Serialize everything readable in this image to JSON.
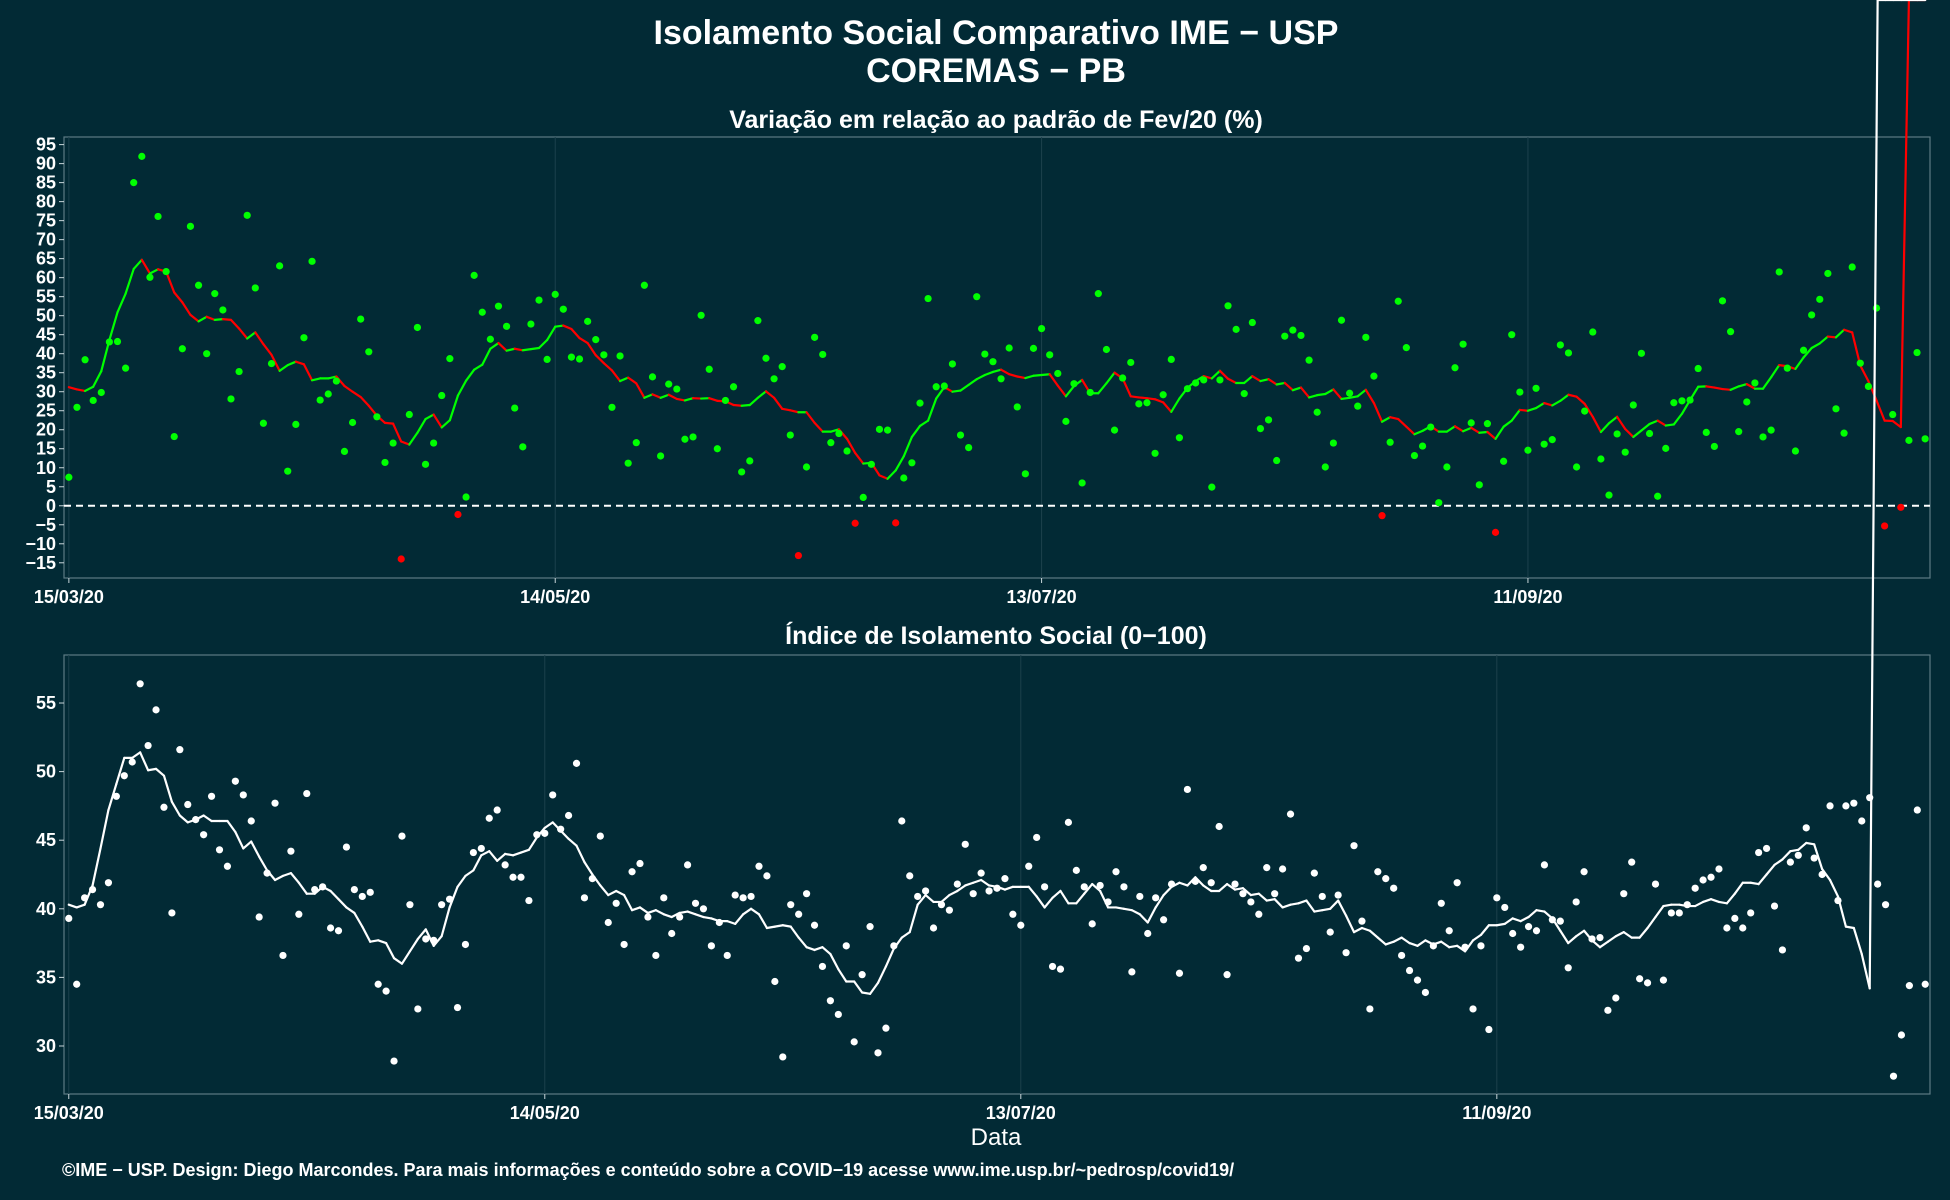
{
  "title": "Isolamento Social Comparativo IME − USP",
  "subtitle": "COREMAS − PB",
  "footer": "©IME − USP. Design: Diego Marcondes. Para mais informações e conteúdo sobre a COVID−19 acesse www.ime.usp.br/~pedrosp/covid19/",
  "colors": {
    "background": "#022a35",
    "positive": "#00ff00",
    "negative": "#ff0000",
    "index": "#ffffff"
  },
  "chart_data": [
    {
      "type": "scatter",
      "title": "Variação em relação ao padrão de Fev/20 (%)",
      "xlabel": "",
      "ylabel": "",
      "x_start": "15/03/20",
      "x_ticks": [
        {
          "day": 0,
          "label": "15/03/20"
        },
        {
          "day": 60,
          "label": "14/05/20"
        },
        {
          "day": 120,
          "label": "13/07/20"
        },
        {
          "day": 180,
          "label": "11/09/20"
        }
      ],
      "ylim": [
        -19,
        97
      ],
      "yticks": [
        -15,
        -10,
        -5,
        0,
        5,
        10,
        15,
        20,
        25,
        30,
        35,
        40,
        45,
        50,
        55,
        60,
        65,
        70,
        75,
        80,
        85,
        90,
        95
      ],
      "reference_line": 0,
      "series": [
        {
          "values": [
            7.5,
            25.9,
            38.4,
            27.7,
            29.8,
            43.1,
            43.2,
            36.2,
            85,
            91.9,
            60.1,
            76.1,
            61.6,
            18.2,
            41.3,
            73.5,
            58,
            40,
            55.8,
            51.5,
            28.1,
            35.3,
            76.4,
            57.3,
            21.7,
            37.4,
            63.1,
            9.1,
            21.4,
            44.2,
            64.3,
            27.8,
            29.4,
            32.8,
            14.3,
            21.9,
            49.1,
            40.5,
            23.4,
            11.4,
            16.5,
            -14,
            24,
            46.9,
            10.9,
            16.5,
            29,
            38.7,
            -2.3,
            2.3,
            60.6,
            50.9,
            43.8,
            52.5,
            47.2,
            25.7,
            15.5,
            47.8,
            54.1,
            38.5,
            55.6,
            51.7,
            39.1,
            38.6,
            48.5,
            43.7,
            39.7,
            25.9,
            39.4,
            11.2,
            16.6,
            58,
            33.9,
            13.1,
            32,
            30.7,
            17.5,
            18.1,
            50.1,
            35.9,
            15,
            27.7,
            31.3,
            8.9,
            11.8,
            48.7,
            38.8,
            33.4,
            36.6,
            18.6,
            -13.1,
            10.2,
            44.3,
            39.8,
            16.6,
            19,
            14.4,
            -4.6,
            2.2,
            10.9,
            20.1,
            19.9,
            -4.5,
            7.3,
            11.3,
            27,
            54.5,
            31.3,
            31.5,
            37.3,
            18.6,
            15.3,
            55,
            39.9,
            37.9,
            33.4,
            41.5,
            26,
            8.4,
            41.4,
            46.6,
            39.7,
            34.8,
            22.2,
            32.1,
            6,
            29.8,
            55.8,
            41.1,
            19.9,
            33.6,
            37.7,
            26.8,
            27.1,
            13.8,
            29.2,
            38.5,
            17.9,
            30.8,
            32.3,
            33.1,
            4.9,
            33.1,
            52.6,
            46.4,
            29.5,
            48.2,
            20.3,
            22.6,
            11.9,
            44.6,
            46.2,
            44.8,
            38.3,
            24.6,
            10.2,
            16.5,
            48.8,
            29.6,
            26.2,
            44.3,
            34.1,
            -2.6,
            16.7,
            53.8,
            41.6,
            13.2,
            15.7,
            20.7,
            0.8,
            10.2,
            36.3,
            42.5,
            21.8,
            5.5,
            21.6,
            -7,
            11.7,
            45,
            29.9,
            14.6,
            30.9,
            16.2,
            17.4,
            42.3,
            40.2,
            10.2,
            24.9,
            45.7,
            12.3,
            2.8,
            18.9,
            14.1,
            26.5,
            40.1,
            19,
            2.5,
            15.1,
            27.1,
            27.6,
            27.8,
            36.1,
            19.3,
            15.6,
            53.9,
            45.8,
            19.5,
            27.3,
            32.3,
            18.1,
            19.9,
            61.5,
            36.2,
            14.4,
            40.9,
            50.2,
            54.3,
            61.1,
            25.5,
            19.1,
            62.8,
            37.5,
            31.4,
            52,
            -5.3,
            24,
            -0.4,
            17.2,
            40.3,
            17.6
          ]
        },
        {
          "values": [
            31.2,
            30.6,
            30.2,
            31.3,
            35.4,
            43.6,
            50.9,
            55.8,
            62.3,
            64.7,
            61.1,
            62.2,
            61.6,
            56.1,
            53.5,
            50.2,
            48.5,
            49.7,
            48.9,
            49.1,
            48.9,
            46.6,
            44,
            45.6,
            42.5,
            39.7,
            35.5,
            37,
            37.9,
            37.2,
            33,
            33.5,
            33.5,
            34,
            31.5,
            30,
            28.6,
            26.3,
            23.7,
            21.8,
            21.6,
            16.9,
            16.1,
            19.2,
            22.8,
            24,
            20.6,
            22.5,
            29,
            32.9,
            35.8,
            37.1,
            41.3,
            42.8,
            40.8,
            41.3,
            40.9,
            41.2,
            41.5,
            43.6,
            47.1,
            47.4,
            46.5,
            44.1,
            42.8,
            39.6,
            37.5,
            35.6,
            32.8,
            33.7,
            32.2,
            28.4,
            29.3,
            28.4,
            29.2,
            28.1,
            27.7,
            28.3,
            28.2,
            28.3,
            27.6,
            27.5,
            26.5,
            26.3,
            26.5,
            28.4,
            30.1,
            28.4,
            25.5,
            25.1,
            24.6,
            24.6,
            21.8,
            19.5,
            19.5,
            20.1,
            17.6,
            13.9,
            11.1,
            11.3,
            8,
            7.1,
            9.3,
            13,
            18.1,
            21,
            22.4,
            28.2,
            31.2,
            30,
            30.3,
            31.8,
            33.3,
            34.4,
            35.2,
            35.8,
            34.6,
            34,
            33.6,
            34.2,
            34.4,
            34.6,
            31.6,
            28.8,
            31.5,
            33.1,
            29.6,
            29.6,
            32.2,
            35,
            33.5,
            28.8,
            28.5,
            28.3,
            28,
            27.2,
            24.7,
            28.2,
            31,
            32.8,
            34.1,
            33.5,
            35.5,
            33.4,
            32.3,
            32.3,
            34.1,
            32.8,
            33.3,
            31.9,
            32.3,
            30.4,
            31.1,
            28.5,
            29.1,
            29.4,
            30.6,
            28.1,
            28.4,
            28.8,
            30.5,
            27,
            22.1,
            23.3,
            22.8,
            20.8,
            18.8,
            19.7,
            20.9,
            19.5,
            19.5,
            20.9,
            19.6,
            20.5,
            19.2,
            19.4,
            17.6,
            20.8,
            22.4,
            25.2,
            25,
            25.7,
            27,
            26.4,
            27.6,
            29.2,
            28.7,
            26.8,
            23.4,
            19.4,
            21.7,
            23.4,
            20.2,
            18.1,
            19.8,
            21.5,
            22.4,
            21.1,
            21.4,
            24.2,
            27.8,
            31.3,
            31.4,
            31.1,
            30.7,
            30.5,
            31.4,
            32,
            30.8,
            30.8,
            33.8,
            37,
            36.7,
            36,
            39,
            41.5,
            42.7,
            44.5,
            44.3,
            46.3,
            45.6,
            36.9,
            32.8,
            27.7,
            22.4,
            22.3,
            20.7
          ]
        }
      ]
    },
    {
      "type": "scatter",
      "title": "Índice de Isolamento Social (0−100)",
      "xlabel": "Data",
      "ylabel": "",
      "x_start": "15/03/20",
      "x_ticks": [
        {
          "day": 0,
          "label": "15/03/20"
        },
        {
          "day": 60,
          "label": "14/05/20"
        },
        {
          "day": 120,
          "label": "13/07/20"
        },
        {
          "day": 180,
          "label": "11/09/20"
        }
      ],
      "ylim": [
        26.5,
        58.5
      ],
      "yticks": [
        30,
        35,
        40,
        45,
        50,
        55
      ],
      "series": [
        {
          "values": [
            39.3,
            34.5,
            40.8,
            41.4,
            40.3,
            41.9,
            48.2,
            49.7,
            50.7,
            56.4,
            51.9,
            54.5,
            47.4,
            39.7,
            51.6,
            47.6,
            46.5,
            45.4,
            48.2,
            44.3,
            43.1,
            49.3,
            48.3,
            46.4,
            39.4,
            42.6,
            47.7,
            36.6,
            44.2,
            39.6,
            48.4,
            41.4,
            41.6,
            38.6,
            38.4,
            44.5,
            41.4,
            40.9,
            41.2,
            34.5,
            34,
            28.9,
            45.3,
            40.3,
            32.7,
            37.8,
            37.7,
            40.3,
            40.7,
            32.8,
            37.4,
            44.1,
            44.4,
            46.6,
            47.2,
            43.2,
            42.3,
            42.3,
            40.6,
            45.4,
            45.5,
            48.3,
            45.8,
            46.8,
            50.6,
            40.8,
            42.2,
            45.3,
            39,
            40.4,
            37.4,
            42.7,
            43.3,
            39.4,
            36.6,
            40.8,
            38.2,
            39.4,
            43.2,
            40.4,
            40,
            37.3,
            39,
            36.6,
            41,
            40.8,
            40.9,
            43.1,
            42.4,
            34.7,
            29.2,
            40.3,
            39.6,
            41.1,
            38.8,
            35.8,
            33.3,
            32.3,
            37.3,
            30.3,
            35.2,
            38.7,
            29.5,
            31.3,
            37.3,
            46.4,
            42.4,
            40.9,
            41.3,
            38.6,
            40.3,
            39.9,
            41.8,
            44.7,
            41.1,
            42.6,
            41.3,
            41.5,
            42.2,
            39.6,
            38.8,
            43.1,
            45.2,
            41.6,
            35.8,
            35.6,
            46.3,
            42.8,
            41.6,
            38.9,
            41.7,
            40.5,
            42.7,
            41.6,
            35.4,
            40.9,
            38.2,
            40.8,
            39.2,
            41.8,
            35.3,
            48.7,
            42,
            43,
            41.9,
            46,
            35.2,
            41.8,
            41.1,
            40.5,
            39.6,
            43,
            41.1,
            42.9,
            46.9,
            36.4,
            37.1,
            42.6,
            40.9,
            38.3,
            41,
            36.8,
            44.6,
            39.1,
            32.7,
            42.7,
            42.2,
            41.5,
            36.6,
            35.5,
            34.8,
            33.9,
            37.3,
            40.4,
            38.4,
            41.9,
            37.2,
            32.7,
            37.3,
            31.2,
            40.8,
            40.1,
            38.2,
            37.2,
            38.7,
            38.4,
            43.2,
            39.2,
            39.1,
            35.7,
            40.5,
            42.7,
            37.8,
            37.9,
            32.6,
            33.5,
            41.1,
            43.4,
            34.9,
            34.6,
            41.8,
            34.8,
            39.7,
            39.7,
            40.3,
            41.5,
            42.1,
            42.3,
            42.9,
            38.6,
            39.3,
            38.6,
            39.7,
            44.1,
            44.4,
            40.2,
            37,
            43.4,
            43.9,
            45.9,
            43.7,
            42.5,
            47.5,
            40.6,
            47.5,
            47.7,
            46.4,
            48.1,
            41.8,
            40.3,
            27.8,
            30.8,
            34.4,
            47.2,
            34.5
          ]
        },
        {
          "values": [
            40.3,
            40.1,
            40.3,
            41.7,
            44.4,
            47.2,
            49.1,
            51,
            51,
            51.4,
            50.1,
            50.2,
            49.7,
            47.8,
            46.8,
            46.3,
            46.5,
            46.8,
            46.4,
            46.4,
            46.4,
            45.6,
            44.4,
            44.9,
            43.8,
            42.8,
            42.1,
            42.4,
            42.6,
            41.9,
            41.1,
            41.1,
            41.6,
            41.3,
            40.7,
            40.1,
            39.7,
            38.7,
            37.6,
            37.7,
            37.5,
            36.4,
            36,
            36.9,
            37.8,
            38.5,
            37.3,
            38,
            40.1,
            41.6,
            42.4,
            42.8,
            43.9,
            44.2,
            43.5,
            44,
            43.9,
            44.1,
            44.3,
            45.2,
            45.9,
            46.3,
            45.7,
            45.1,
            44.6,
            43.4,
            42.5,
            41.7,
            41,
            41.3,
            41,
            39.9,
            40.1,
            39.7,
            39.9,
            39.6,
            39.4,
            39.7,
            39.8,
            39.6,
            39.4,
            39.3,
            39.1,
            39.1,
            38.9,
            39.6,
            40,
            39.6,
            38.6,
            38.7,
            38.8,
            38.7,
            37.9,
            37.2,
            37,
            37.2,
            36.7,
            35.6,
            34.7,
            34.7,
            33.9,
            33.8,
            34.6,
            35.8,
            37.1,
            37.9,
            38.3,
            40.3,
            41,
            40.5,
            40.5,
            41,
            41.3,
            41.7,
            41.9,
            42.1,
            41.7,
            41.6,
            41.4,
            41.6,
            41.6,
            41.6,
            40.9,
            40.1,
            40.8,
            41.3,
            40.4,
            40.4,
            41.1,
            41.8,
            41.3,
            40.1,
            40.1,
            40,
            39.9,
            39.6,
            39,
            40.1,
            41,
            41.6,
            41.9,
            41.7,
            42.3,
            41.7,
            41.3,
            41.3,
            41.8,
            41.4,
            41.5,
            41,
            41.1,
            40.6,
            40.7,
            40.1,
            40.3,
            40.4,
            40.6,
            39.8,
            39.9,
            40,
            40.6,
            39.5,
            38.3,
            38.6,
            38.4,
            37.9,
            37.4,
            37.6,
            37.9,
            37.5,
            37.3,
            37.7,
            37.4,
            37.6,
            37.2,
            37.3,
            36.9,
            37.7,
            38.1,
            38.8,
            38.8,
            38.9,
            39.3,
            39.1,
            39.4,
            39.9,
            39.8,
            39.3,
            38.4,
            37.5,
            38,
            38.4,
            37.7,
            37.2,
            37.6,
            38,
            38.3,
            37.9,
            37.9,
            38.6,
            39.4,
            40.2,
            40.3,
            40.3,
            40.2,
            40.2,
            40.5,
            40.7,
            40.5,
            40.4,
            41.1,
            41.9,
            41.9,
            41.8,
            42.5,
            43.2,
            43.6,
            44.2,
            44.3,
            44.8,
            44.7,
            42.9,
            42.1,
            40.9,
            38.7,
            38.6,
            36.7,
            34.2
          ]
        }
      ]
    }
  ]
}
